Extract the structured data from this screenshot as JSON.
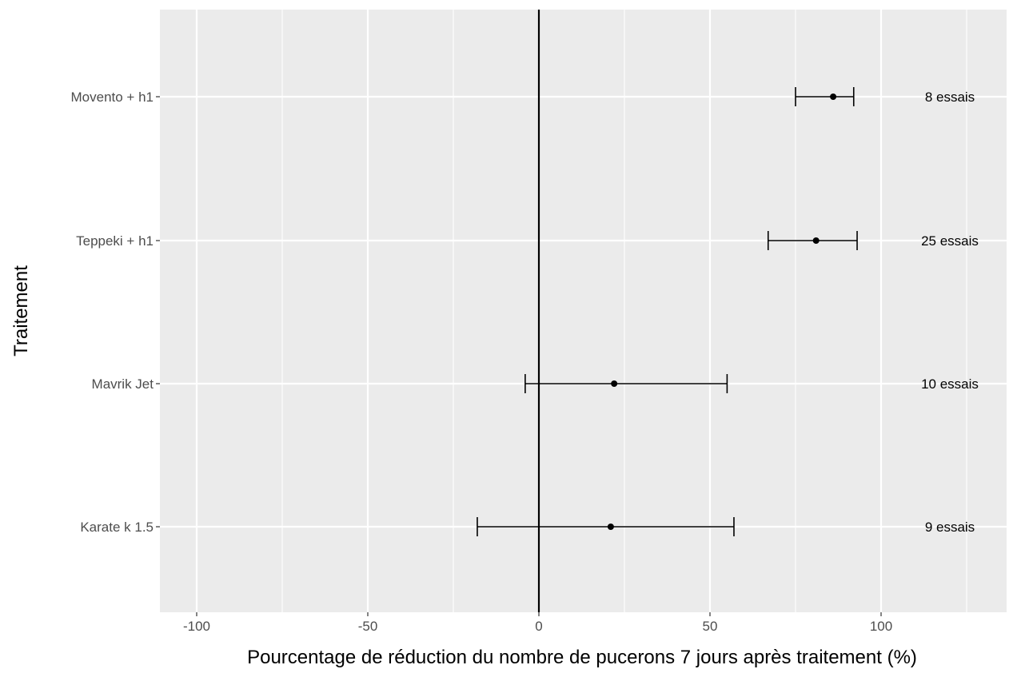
{
  "chart_data": {
    "type": "scatter",
    "subtype": "forest-plot",
    "xlabel": "Pourcentage de réduction du nombre de pucerons 7 jours après traitement (%)",
    "ylabel": "Traitement",
    "xlim": [
      -110,
      135
    ],
    "x_ticks": [
      -100,
      -50,
      0,
      50,
      100
    ],
    "x_tick_labels": [
      "-100",
      "-50",
      "0",
      "50",
      "100"
    ],
    "grid": true,
    "reference_line": 0,
    "colors": {
      "panel_background": "#ebebeb",
      "grid": "#ffffff",
      "points": "#000000",
      "tick_labels": "#4d4d4d"
    },
    "rows": [
      {
        "treatment": "Movento + h1",
        "estimate": 86,
        "lower": 75,
        "upper": 92,
        "annotation": "8 essais"
      },
      {
        "treatment": "Teppeki + h1",
        "estimate": 81,
        "lower": 67,
        "upper": 93,
        "annotation": "25 essais"
      },
      {
        "treatment": "Mavrik Jet",
        "estimate": 22,
        "lower": -4,
        "upper": 55,
        "annotation": "10 essais"
      },
      {
        "treatment": "Karate k 1.5",
        "estimate": 21,
        "lower": -18,
        "upper": 57,
        "annotation": "9 essais"
      }
    ]
  }
}
